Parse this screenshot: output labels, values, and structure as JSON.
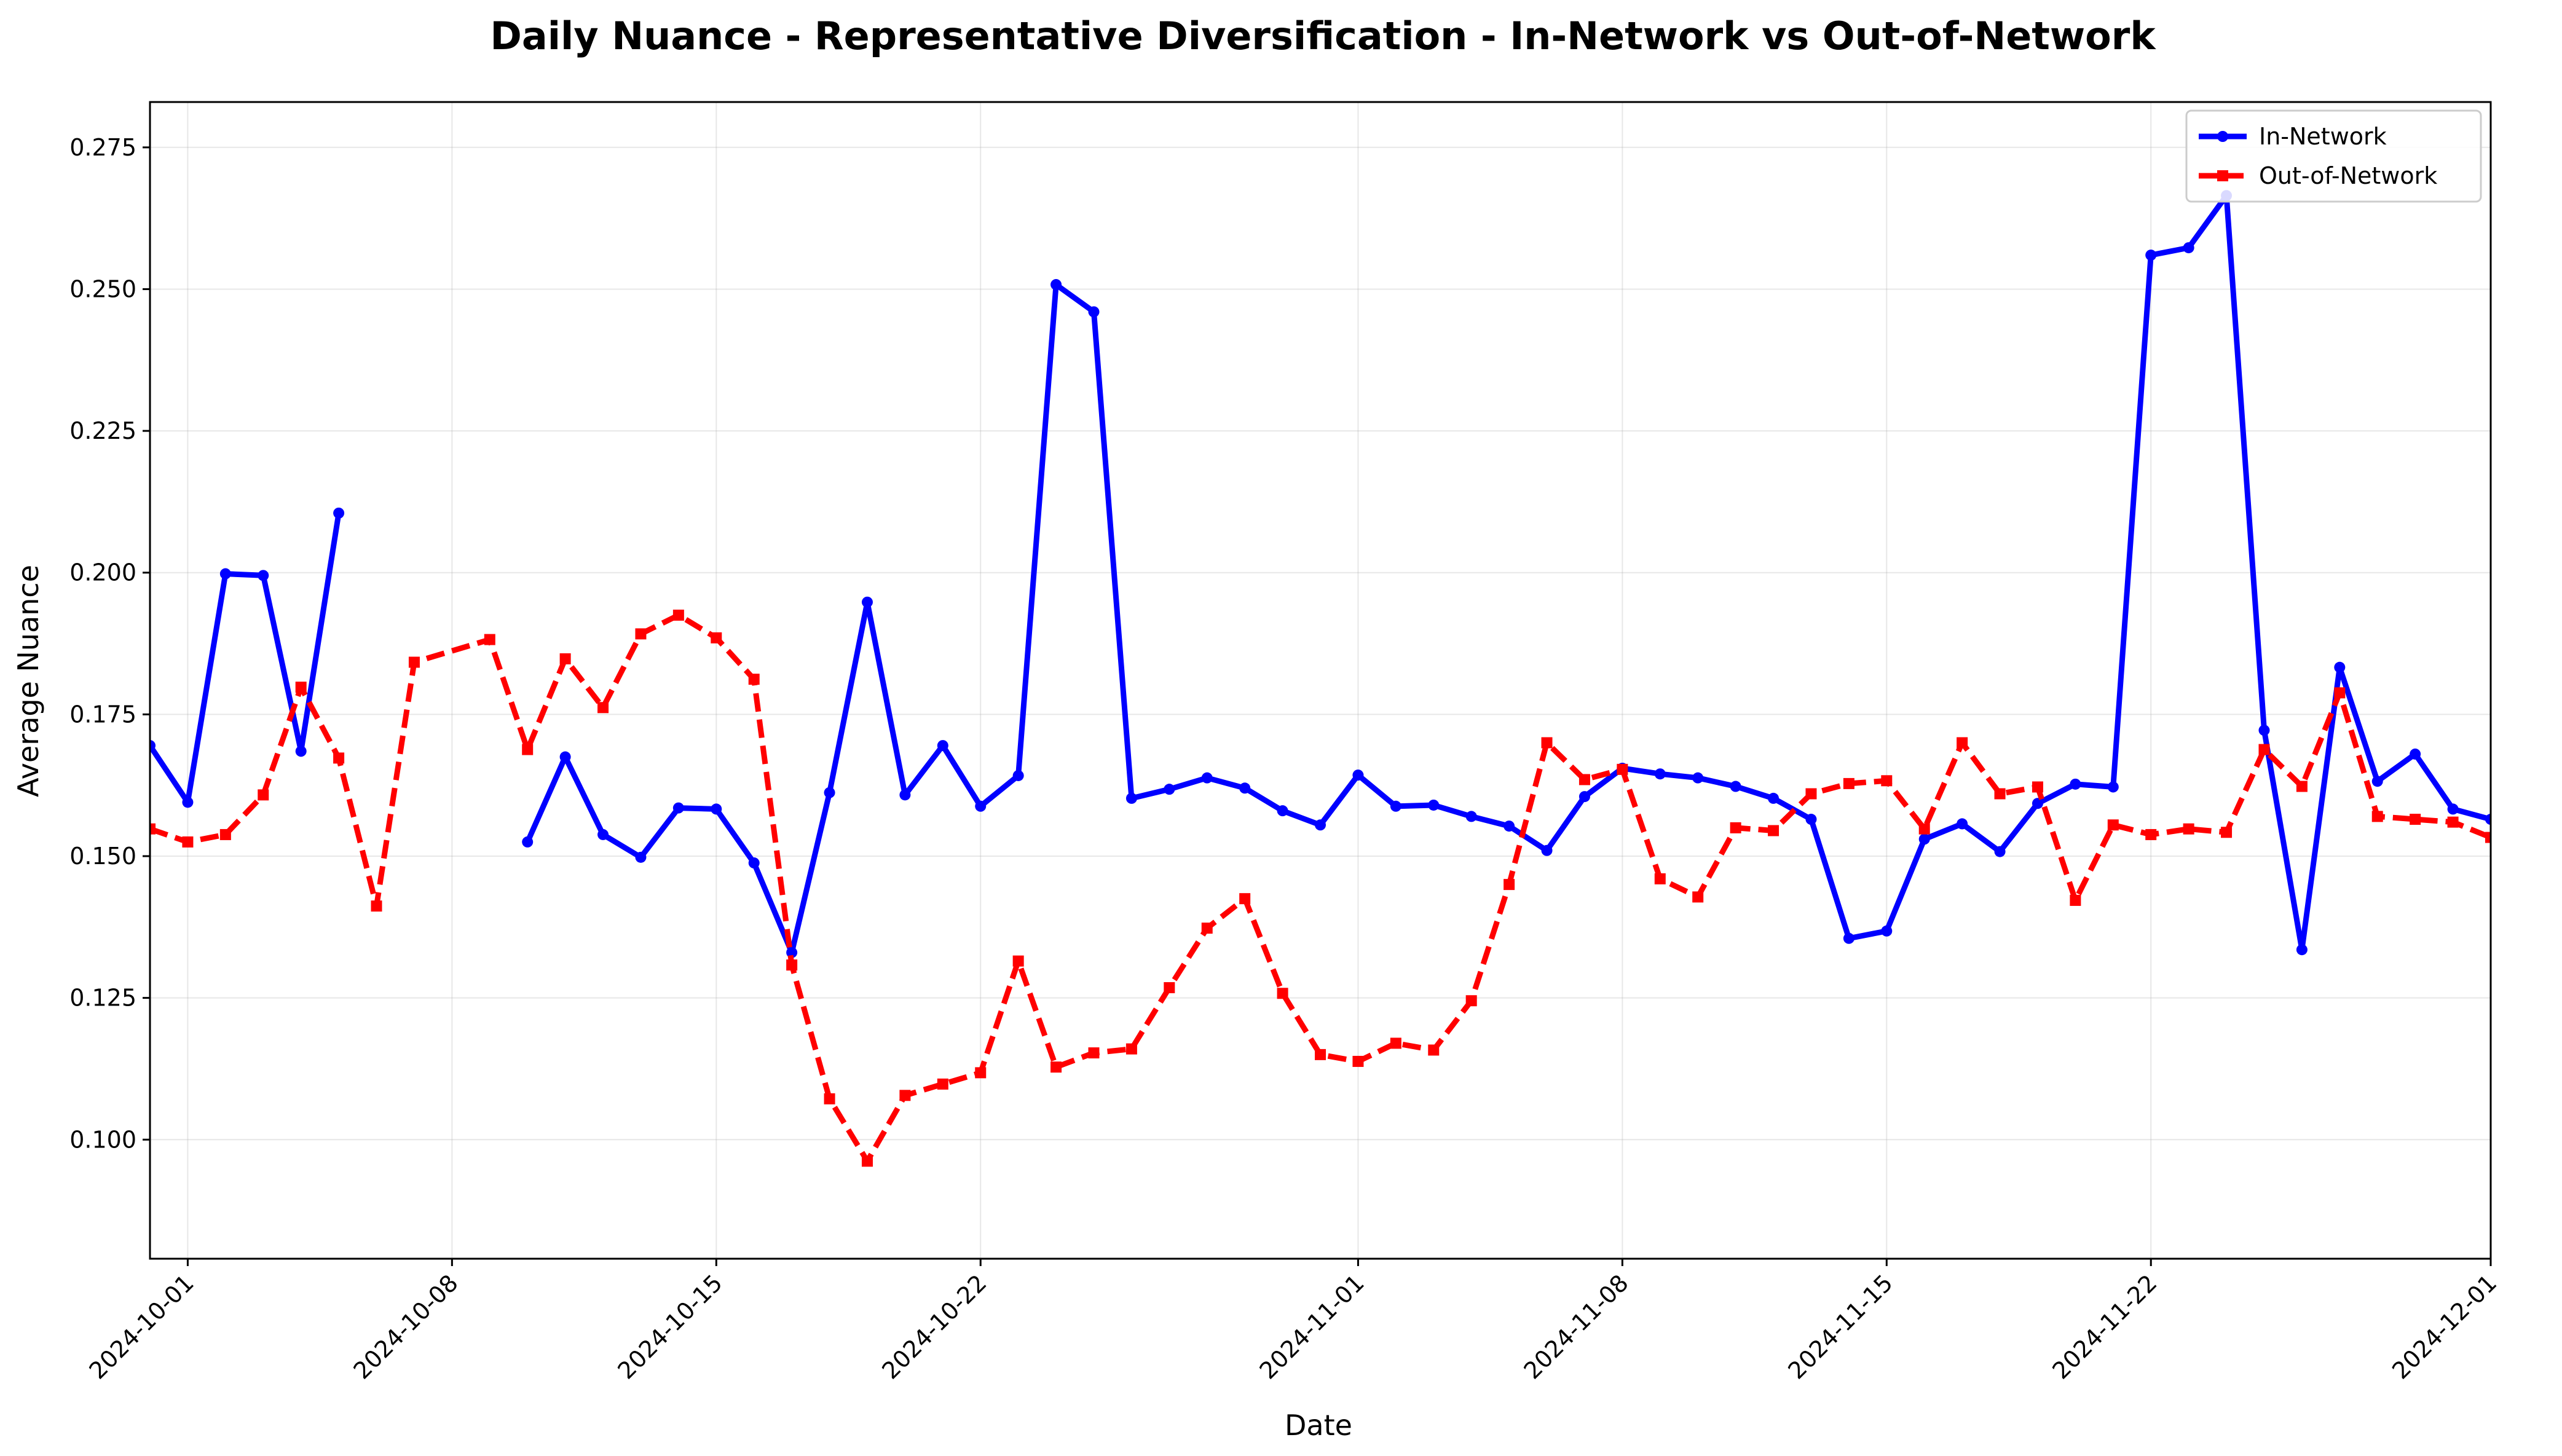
{
  "chart_data": {
    "type": "line",
    "title": "Daily Nuance - Representative Diversification - In-Network vs Out-of-Network",
    "xlabel": "Date",
    "ylabel": "Average Nuance",
    "xlim": [
      "2024-09-30",
      "2024-12-01"
    ],
    "ylim": [
      0.079,
      0.283
    ],
    "x_ticks": [
      "2024-10-01",
      "2024-10-08",
      "2024-10-15",
      "2024-10-22",
      "2024-11-01",
      "2024-11-08",
      "2024-11-15",
      "2024-11-22",
      "2024-12-01"
    ],
    "y_ticks": [
      "0.100",
      "0.125",
      "0.150",
      "0.175",
      "0.200",
      "0.225",
      "0.250",
      "0.275"
    ],
    "grid": true,
    "legend_position": "upper right",
    "series": [
      {
        "name": "In-Network",
        "color": "#0000ff",
        "style": "solid",
        "marker": "circle",
        "points": [
          [
            "2024-09-30",
            0.1695
          ],
          [
            "2024-10-01",
            0.1595
          ],
          [
            "2024-10-02",
            0.1998
          ],
          [
            "2024-10-03",
            0.1995
          ],
          [
            "2024-10-04",
            0.1685
          ],
          [
            "2024-10-05",
            0.2105
          ],
          null,
          [
            "2024-10-10",
            0.1525
          ],
          [
            "2024-10-11",
            0.1675
          ],
          [
            "2024-10-12",
            0.1538
          ],
          [
            "2024-10-13",
            0.1498
          ],
          [
            "2024-10-14",
            0.1585
          ],
          [
            "2024-10-15",
            0.1583
          ],
          [
            "2024-10-16",
            0.1488
          ],
          [
            "2024-10-17",
            0.133
          ],
          [
            "2024-10-18",
            0.1612
          ],
          [
            "2024-10-19",
            0.1948
          ],
          [
            "2024-10-20",
            0.1608
          ],
          [
            "2024-10-21",
            0.1695
          ],
          [
            "2024-10-22",
            0.1588
          ],
          [
            "2024-10-23",
            0.1642
          ],
          [
            "2024-10-24",
            0.2508
          ],
          [
            "2024-10-25",
            0.246
          ],
          [
            "2024-10-26",
            0.1602
          ],
          [
            "2024-10-27",
            0.1618
          ],
          [
            "2024-10-28",
            0.1638
          ],
          [
            "2024-10-29",
            0.162
          ],
          [
            "2024-10-30",
            0.158
          ],
          [
            "2024-10-31",
            0.1555
          ],
          [
            "2024-11-01",
            0.1643
          ],
          [
            "2024-11-02",
            0.1588
          ],
          [
            "2024-11-03",
            0.159
          ],
          [
            "2024-11-04",
            0.157
          ],
          [
            "2024-11-05",
            0.1553
          ],
          [
            "2024-11-06",
            0.151
          ],
          [
            "2024-11-07",
            0.1605
          ],
          [
            "2024-11-08",
            0.1655
          ],
          [
            "2024-11-09",
            0.1645
          ],
          [
            "2024-11-10",
            0.1638
          ],
          [
            "2024-11-11",
            0.1623
          ],
          [
            "2024-11-12",
            0.1602
          ],
          [
            "2024-11-13",
            0.1565
          ],
          [
            "2024-11-14",
            0.1355
          ],
          [
            "2024-11-15",
            0.1368
          ],
          [
            "2024-11-16",
            0.153
          ],
          [
            "2024-11-17",
            0.1557
          ],
          [
            "2024-11-18",
            0.1508
          ],
          [
            "2024-11-19",
            0.1593
          ],
          [
            "2024-11-20",
            0.1627
          ],
          [
            "2024-11-21",
            0.1622
          ],
          [
            "2024-11-22",
            0.256
          ],
          [
            "2024-11-23",
            0.2573
          ],
          [
            "2024-11-24",
            0.2665
          ],
          [
            "2024-11-25",
            0.1722
          ],
          [
            "2024-11-26",
            0.1335
          ],
          [
            "2024-11-27",
            0.1833
          ],
          [
            "2024-11-28",
            0.1632
          ],
          [
            "2024-11-29",
            0.168
          ],
          [
            "2024-11-30",
            0.1583
          ],
          [
            "2024-12-01",
            0.1565
          ]
        ]
      },
      {
        "name": "Out-of-Network",
        "color": "#ff0000",
        "style": "dashed",
        "marker": "square",
        "points": [
          [
            "2024-09-30",
            0.1548
          ],
          [
            "2024-10-01",
            0.1525
          ],
          [
            "2024-10-02",
            0.1538
          ],
          [
            "2024-10-03",
            0.1608
          ],
          [
            "2024-10-04",
            0.1798
          ],
          [
            "2024-10-05",
            0.1673
          ],
          [
            "2024-10-06",
            0.1412
          ],
          [
            "2024-10-07",
            0.1842
          ],
          [
            "2024-10-09",
            0.1882
          ],
          [
            "2024-10-10",
            0.1688
          ],
          [
            "2024-10-11",
            0.1848
          ],
          [
            "2024-10-12",
            0.1762
          ],
          [
            "2024-10-13",
            0.1892
          ],
          [
            "2024-10-14",
            0.1925
          ],
          [
            "2024-10-15",
            0.1885
          ],
          [
            "2024-10-16",
            0.1812
          ],
          [
            "2024-10-17",
            0.1308
          ],
          [
            "2024-10-18",
            0.1072
          ],
          [
            "2024-10-19",
            0.0962
          ],
          [
            "2024-10-20",
            0.1078
          ],
          [
            "2024-10-21",
            0.1098
          ],
          [
            "2024-10-22",
            0.1118
          ],
          [
            "2024-10-23",
            0.1315
          ],
          [
            "2024-10-24",
            0.1128
          ],
          [
            "2024-10-25",
            0.1153
          ],
          [
            "2024-10-26",
            0.116
          ],
          [
            "2024-10-27",
            0.1268
          ],
          [
            "2024-10-28",
            0.1373
          ],
          [
            "2024-10-29",
            0.1425
          ],
          [
            "2024-10-30",
            0.1258
          ],
          [
            "2024-10-31",
            0.115
          ],
          [
            "2024-11-01",
            0.1138
          ],
          [
            "2024-11-02",
            0.117
          ],
          [
            "2024-11-03",
            0.1158
          ],
          [
            "2024-11-04",
            0.1245
          ],
          [
            "2024-11-05",
            0.145
          ],
          [
            "2024-11-06",
            0.17
          ],
          [
            "2024-11-07",
            0.1635
          ],
          [
            "2024-11-08",
            0.1653
          ],
          [
            "2024-11-09",
            0.146
          ],
          [
            "2024-11-10",
            0.1428
          ],
          [
            "2024-11-11",
            0.155
          ],
          [
            "2024-11-12",
            0.1545
          ],
          [
            "2024-11-13",
            0.161
          ],
          [
            "2024-11-14",
            0.1628
          ],
          [
            "2024-11-15",
            0.1633
          ],
          [
            "2024-11-16",
            0.1548
          ],
          [
            "2024-11-17",
            0.17
          ],
          [
            "2024-11-18",
            0.161
          ],
          [
            "2024-11-19",
            0.1622
          ],
          [
            "2024-11-20",
            0.1422
          ],
          [
            "2024-11-21",
            0.1555
          ],
          [
            "2024-11-22",
            0.1538
          ],
          [
            "2024-11-23",
            0.1548
          ],
          [
            "2024-11-24",
            0.1542
          ],
          [
            "2024-11-25",
            0.1688
          ],
          [
            "2024-11-26",
            0.1623
          ],
          [
            "2024-11-27",
            0.1788
          ],
          [
            "2024-11-28",
            0.157
          ],
          [
            "2024-11-29",
            0.1565
          ],
          [
            "2024-11-30",
            0.156
          ],
          [
            "2024-12-01",
            0.1533
          ]
        ]
      }
    ]
  }
}
